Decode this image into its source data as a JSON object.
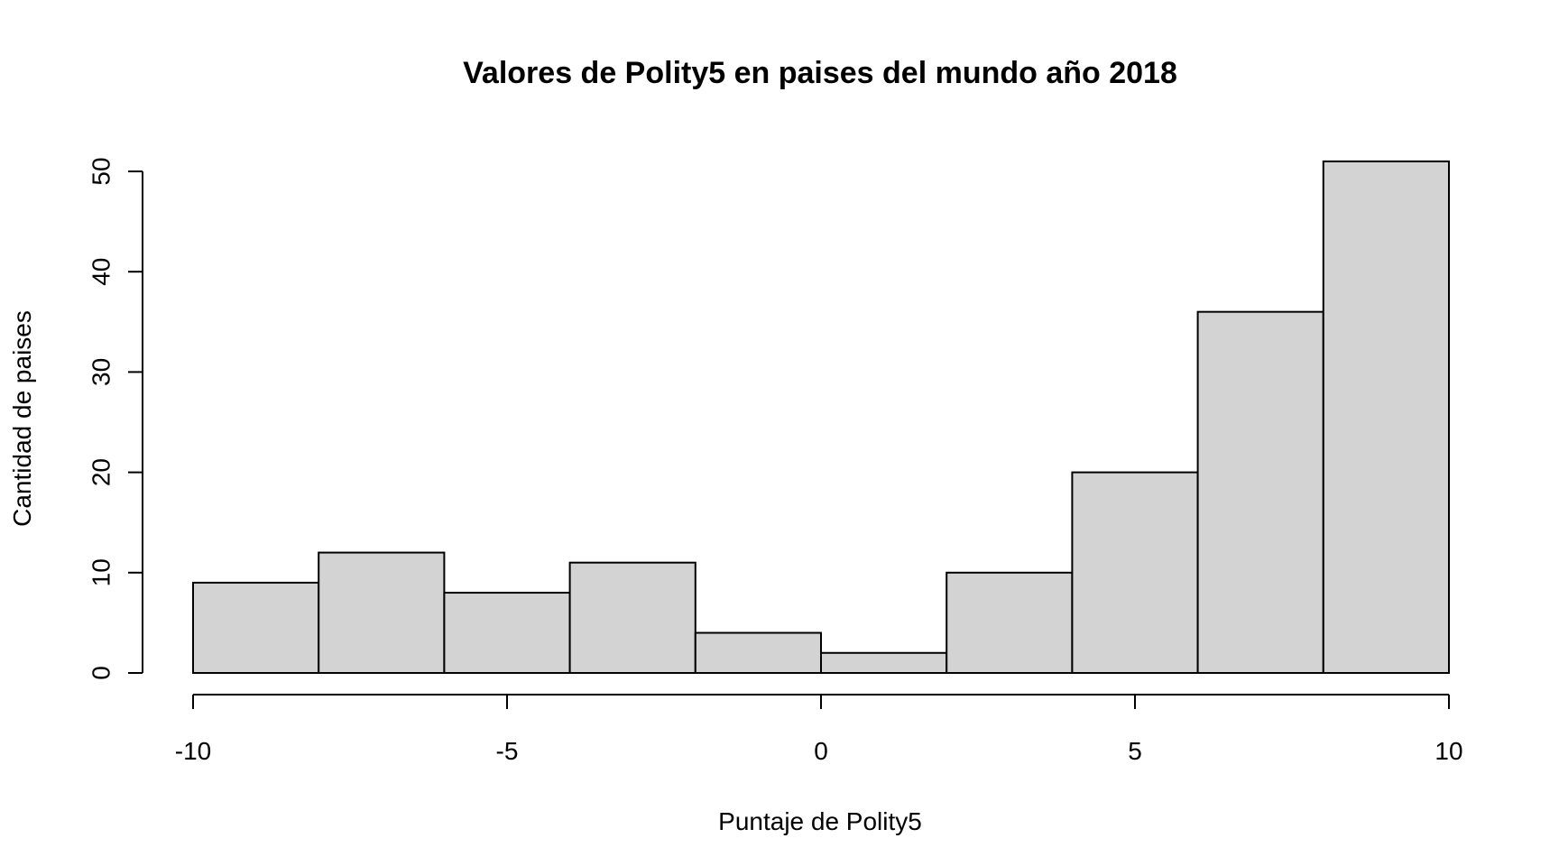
{
  "chart_data": {
    "type": "bar",
    "subtype": "histogram",
    "title": "Valores de Polity5 en paises del mundo año 2018",
    "xlabel": "Puntaje de Polity5",
    "ylabel": "Cantidad de paises",
    "bins": [
      {
        "x0": -10,
        "x1": -8,
        "count": 9
      },
      {
        "x0": -8,
        "x1": -6,
        "count": 12
      },
      {
        "x0": -6,
        "x1": -4,
        "count": 8
      },
      {
        "x0": -4,
        "x1": -2,
        "count": 11
      },
      {
        "x0": -2,
        "x1": 0,
        "count": 4
      },
      {
        "x0": 0,
        "x1": 2,
        "count": 2
      },
      {
        "x0": 2,
        "x1": 4,
        "count": 10
      },
      {
        "x0": 4,
        "x1": 6,
        "count": 20
      },
      {
        "x0": 6,
        "x1": 8,
        "count": 36
      },
      {
        "x0": 8,
        "x1": 10,
        "count": 51
      }
    ],
    "xlim": [
      -10,
      10
    ],
    "ylim": [
      0,
      50
    ],
    "x_ticks": [
      {
        "value": -10,
        "label": "-10"
      },
      {
        "value": -5,
        "label": "-5"
      },
      {
        "value": 0,
        "label": "0"
      },
      {
        "value": 5,
        "label": "5"
      },
      {
        "value": 10,
        "label": "10"
      }
    ],
    "y_ticks": [
      {
        "value": 0,
        "label": "0"
      },
      {
        "value": 10,
        "label": "10"
      },
      {
        "value": 20,
        "label": "20"
      },
      {
        "value": 30,
        "label": "30"
      },
      {
        "value": 40,
        "label": "40"
      },
      {
        "value": 50,
        "label": "50"
      }
    ],
    "grid": false,
    "bar_color": "#d3d3d3",
    "edge_color": "#000000"
  }
}
